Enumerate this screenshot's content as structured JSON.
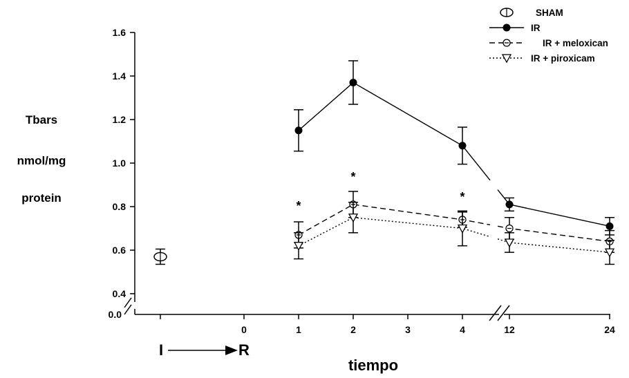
{
  "chart_data": {
    "type": "line",
    "title": "",
    "ylabel_lines": [
      "Tbars",
      "nmol/mg",
      "protein"
    ],
    "xlabel": "tiempo",
    "ylim": [
      0.4,
      1.6
    ],
    "y_break_label": "0.0",
    "y_ticks": [
      "0.4",
      "0.6",
      "0.8",
      "1.0",
      "1.2",
      "1.4",
      "1.6"
    ],
    "x_categories": [
      "0",
      "1",
      "2",
      "3",
      "4",
      "12",
      "24"
    ],
    "ir_arrow": {
      "start": "I",
      "end": "R"
    },
    "legend": [
      {
        "name": "SHAM",
        "marker": "open-ellipse",
        "line": "none"
      },
      {
        "name": "IR",
        "marker": "filled-circle",
        "line": "solid"
      },
      {
        "name": "IR + meloxican",
        "marker": "circle-minus",
        "line": "dashed"
      },
      {
        "name": "IR + piroxicam",
        "marker": "open-triangle-down",
        "line": "dotted"
      }
    ],
    "series": [
      {
        "name": "SHAM",
        "x": [
          "basal"
        ],
        "y": [
          0.57
        ],
        "err": [
          0.035
        ]
      },
      {
        "name": "IR",
        "x": [
          "1",
          "2",
          "4",
          "12",
          "24"
        ],
        "y": [
          1.15,
          1.37,
          1.08,
          0.81,
          0.71
        ],
        "err": [
          0.095,
          0.1,
          0.085,
          0.03,
          0.04
        ]
      },
      {
        "name": "IR + meloxican",
        "x": [
          "1",
          "2",
          "4",
          "12",
          "24"
        ],
        "y": [
          0.67,
          0.81,
          0.74,
          0.7,
          0.64
        ],
        "err": [
          0.06,
          0.06,
          0.035,
          0.05,
          0.05
        ]
      },
      {
        "name": "IR + piroxicam",
        "x": [
          "1",
          "2",
          "4",
          "12",
          "24"
        ],
        "y": [
          0.62,
          0.75,
          0.7,
          0.635,
          0.59
        ],
        "err": [
          0.06,
          0.07,
          0.08,
          0.045,
          0.055
        ]
      }
    ],
    "annotations": [
      {
        "text": "*",
        "x": "1"
      },
      {
        "text": "*",
        "x": "2"
      },
      {
        "text": "*",
        "x": "4"
      }
    ]
  }
}
